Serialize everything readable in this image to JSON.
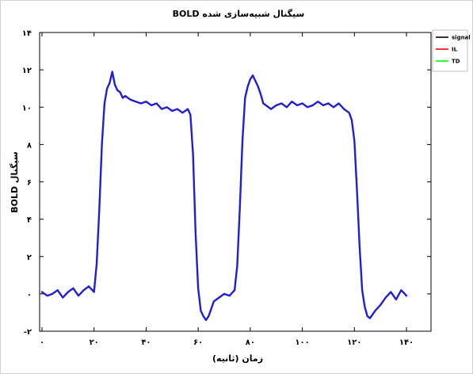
{
  "chart_data": {
    "type": "line",
    "title": "سیگنال شبیه‌سازی شده BOLD",
    "xlabel": "زمان (ثانیه)",
    "ylabel": "سیگنال BOLD",
    "xlim": [
      0,
      150
    ],
    "ylim": [
      -2,
      14
    ],
    "x_ticks": [
      0,
      20,
      40,
      60,
      80,
      100,
      120,
      140
    ],
    "x_tick_labels": [
      "۰",
      "۲۰",
      "۴۰",
      "۶۰",
      "۸۰",
      "۱۰۰",
      "۱۲۰",
      "۱۴۰"
    ],
    "y_ticks": [
      -2,
      0,
      2,
      4,
      6,
      8,
      10,
      12,
      14
    ],
    "y_tick_labels": [
      "-۲",
      "۰",
      "۲",
      "۴",
      "۶",
      "۸",
      "۱۰",
      "۱۲",
      "۱۴"
    ],
    "grid": false,
    "legend_position": "top-right outside",
    "series": [
      {
        "name": "signal",
        "color": "#000000",
        "x": [],
        "y": []
      },
      {
        "name": "IL",
        "color": "#ff0000",
        "x": [],
        "y": []
      },
      {
        "name": "TD",
        "color": "#00ff00",
        "x": [],
        "y": []
      },
      {
        "name": "",
        "color": "#1f1fd6",
        "x": [
          0,
          2,
          4,
          6,
          8,
          10,
          12,
          14,
          16,
          18,
          20,
          21,
          22,
          23,
          24,
          25,
          26,
          27,
          28,
          29,
          30,
          31,
          32,
          34,
          36,
          38,
          40,
          42,
          44,
          46,
          48,
          50,
          52,
          54,
          55,
          56,
          57,
          58,
          59,
          60,
          61,
          62,
          63,
          64,
          65,
          66,
          68,
          70,
          72,
          74,
          75,
          76,
          77,
          78,
          79,
          80,
          81,
          82,
          83,
          84,
          85,
          86,
          88,
          90,
          92,
          94,
          96,
          98,
          100,
          102,
          104,
          106,
          108,
          110,
          112,
          114,
          116,
          118,
          119,
          120,
          121,
          122,
          123,
          124,
          125,
          126,
          127,
          128,
          130,
          132,
          134,
          136,
          138,
          140
        ],
        "y": [
          0.1,
          -0.1,
          0,
          0.2,
          -0.2,
          0.1,
          0.3,
          -0.1,
          0.2,
          0.4,
          0.1,
          1.6,
          4.5,
          8,
          10.2,
          11,
          11.3,
          11.9,
          11.2,
          10.9,
          10.8,
          10.5,
          10.6,
          10.4,
          10.3,
          10.2,
          10.3,
          10.1,
          10.2,
          9.9,
          10,
          9.8,
          9.9,
          9.7,
          9.8,
          9.9,
          9.6,
          7.5,
          3.2,
          0.3,
          -0.9,
          -1.2,
          -1.4,
          -1.2,
          -0.8,
          -0.4,
          -0.2,
          0,
          -0.1,
          0.2,
          1.5,
          4.6,
          8.2,
          10.5,
          11.1,
          11.5,
          11.7,
          11.4,
          11.1,
          10.7,
          10.2,
          10.1,
          9.9,
          10.1,
          10.2,
          10,
          10.3,
          10.1,
          10.2,
          10,
          10.1,
          10.3,
          10.1,
          10.2,
          10,
          10.2,
          9.9,
          9.7,
          9.3,
          8.2,
          5.5,
          2.5,
          0.2,
          -0.7,
          -1.2,
          -1.3,
          -1.1,
          -0.9,
          -0.6,
          -0.2,
          0.1,
          -0.3,
          0.2,
          -0.1
        ]
      }
    ]
  }
}
